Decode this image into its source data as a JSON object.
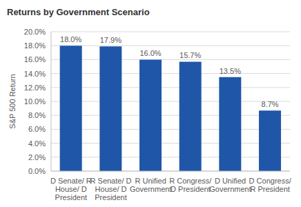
{
  "chart_data": {
    "type": "bar",
    "title": "Returns by Government Scenario",
    "y_label": "S&P 500 Return",
    "categories": [
      "D Senate/ R House/ D President",
      "R Senate/ D House/ D President",
      "R Unified Government",
      "R Congress/ D President",
      "D Unified Government",
      "D Congress/ R President"
    ],
    "values": [
      18.0,
      17.9,
      16.0,
      15.7,
      13.5,
      8.7
    ],
    "value_labels": [
      "18.0%",
      "17.9%",
      "16.0%",
      "15.7%",
      "13.5%",
      "8.7%"
    ],
    "data_labels": true,
    "color": "#1f56a8",
    "ylim": [
      0,
      20
    ],
    "yticks": [
      {
        "value": 0,
        "label": "0.0%"
      },
      {
        "value": 2,
        "label": "2.0%"
      },
      {
        "value": 4,
        "label": "4.0%"
      },
      {
        "value": 6,
        "label": "6.0%"
      },
      {
        "value": 8,
        "label": "8.0%"
      },
      {
        "value": 10,
        "label": "10.0%"
      },
      {
        "value": 12,
        "label": "12.0%"
      },
      {
        "value": 14,
        "label": "14.0%"
      },
      {
        "value": 16,
        "label": "16.0%"
      },
      {
        "value": 18,
        "label": "18.0%"
      },
      {
        "value": 20,
        "label": "20.0%"
      }
    ],
    "grid": true
  }
}
